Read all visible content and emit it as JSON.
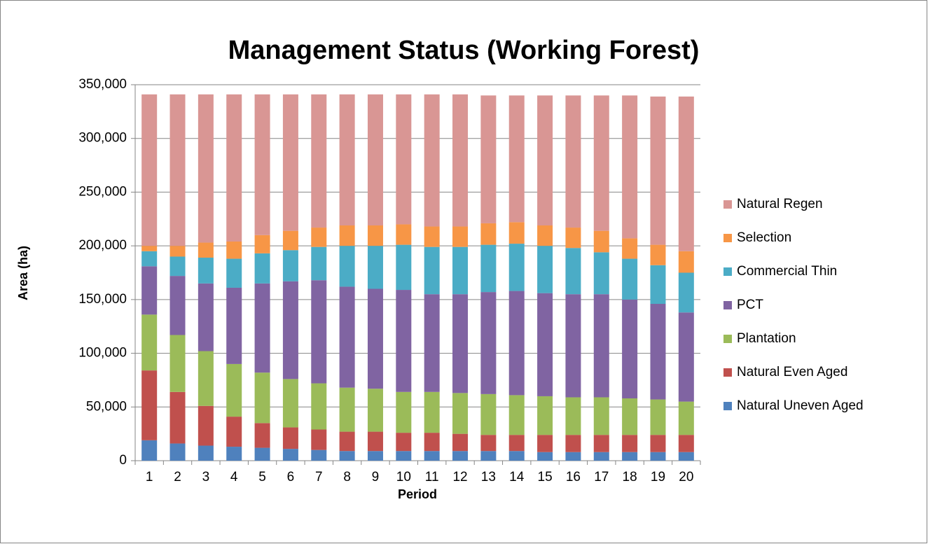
{
  "chart_data": {
    "type": "stacked_bar",
    "title": "Management Status (Working Forest)",
    "xlabel": "Period",
    "ylabel": "Area (ha)",
    "categories": [
      "1",
      "2",
      "3",
      "4",
      "5",
      "6",
      "7",
      "8",
      "9",
      "10",
      "11",
      "12",
      "13",
      "14",
      "15",
      "16",
      "17",
      "18",
      "19",
      "20"
    ],
    "series": [
      {
        "name": "Natural Uneven Aged",
        "color": "#4f81bd",
        "values": [
          19000,
          16000,
          14000,
          13000,
          12000,
          11000,
          10000,
          9000,
          9000,
          9000,
          9000,
          9000,
          9000,
          9000,
          8000,
          8000,
          8000,
          8000,
          8000,
          8000
        ]
      },
      {
        "name": "Natural Even Aged",
        "color": "#c0504d",
        "values": [
          65000,
          48000,
          37000,
          28000,
          23000,
          20000,
          19000,
          18000,
          18000,
          17000,
          17000,
          16000,
          15000,
          15000,
          16000,
          16000,
          16000,
          16000,
          16000,
          16000
        ]
      },
      {
        "name": "Plantation",
        "color": "#9bbb59",
        "values": [
          52000,
          53000,
          51000,
          49000,
          47000,
          45000,
          43000,
          41000,
          40000,
          38000,
          38000,
          38000,
          38000,
          37000,
          36000,
          35000,
          35000,
          34000,
          33000,
          31000
        ]
      },
      {
        "name": "PCT",
        "color": "#8064a2",
        "values": [
          45000,
          55000,
          63000,
          71000,
          83000,
          91000,
          96000,
          94000,
          93000,
          95000,
          91000,
          92000,
          95000,
          97000,
          96000,
          96000,
          96000,
          92000,
          89000,
          83000
        ]
      },
      {
        "name": "Commercial Thin",
        "color": "#4bacc6",
        "values": [
          14000,
          18000,
          24000,
          27000,
          28000,
          29000,
          31000,
          38000,
          40000,
          42000,
          44000,
          44000,
          44000,
          44000,
          44000,
          43000,
          39000,
          38000,
          36000,
          37000
        ]
      },
      {
        "name": "Selection",
        "color": "#f79646",
        "values": [
          5000,
          10000,
          14000,
          16000,
          17000,
          18000,
          18000,
          19000,
          19000,
          19000,
          19000,
          19000,
          20000,
          20000,
          19000,
          19000,
          20000,
          19000,
          19000,
          20000
        ]
      },
      {
        "name": "Natural Regen",
        "color": "#d99694",
        "values": [
          141000,
          141000,
          138000,
          137000,
          131000,
          127000,
          124000,
          122000,
          122000,
          121000,
          123000,
          123000,
          119000,
          118000,
          121000,
          123000,
          126000,
          133000,
          138000,
          144000
        ]
      }
    ],
    "ylim": [
      0,
      350000
    ],
    "yticks": [
      0,
      {
        "value": 50000,
        "label": "50,000"
      },
      {
        "value": 100000,
        "label": "100,000"
      },
      {
        "value": 150000,
        "label": "150,000"
      },
      {
        "value": 200000,
        "label": "200,000"
      },
      {
        "value": 250000,
        "label": "250,000"
      },
      {
        "value": 300000,
        "label": "300,000"
      },
      {
        "value": 350000,
        "label": "350,000"
      }
    ],
    "grid": true,
    "legend": "right"
  }
}
